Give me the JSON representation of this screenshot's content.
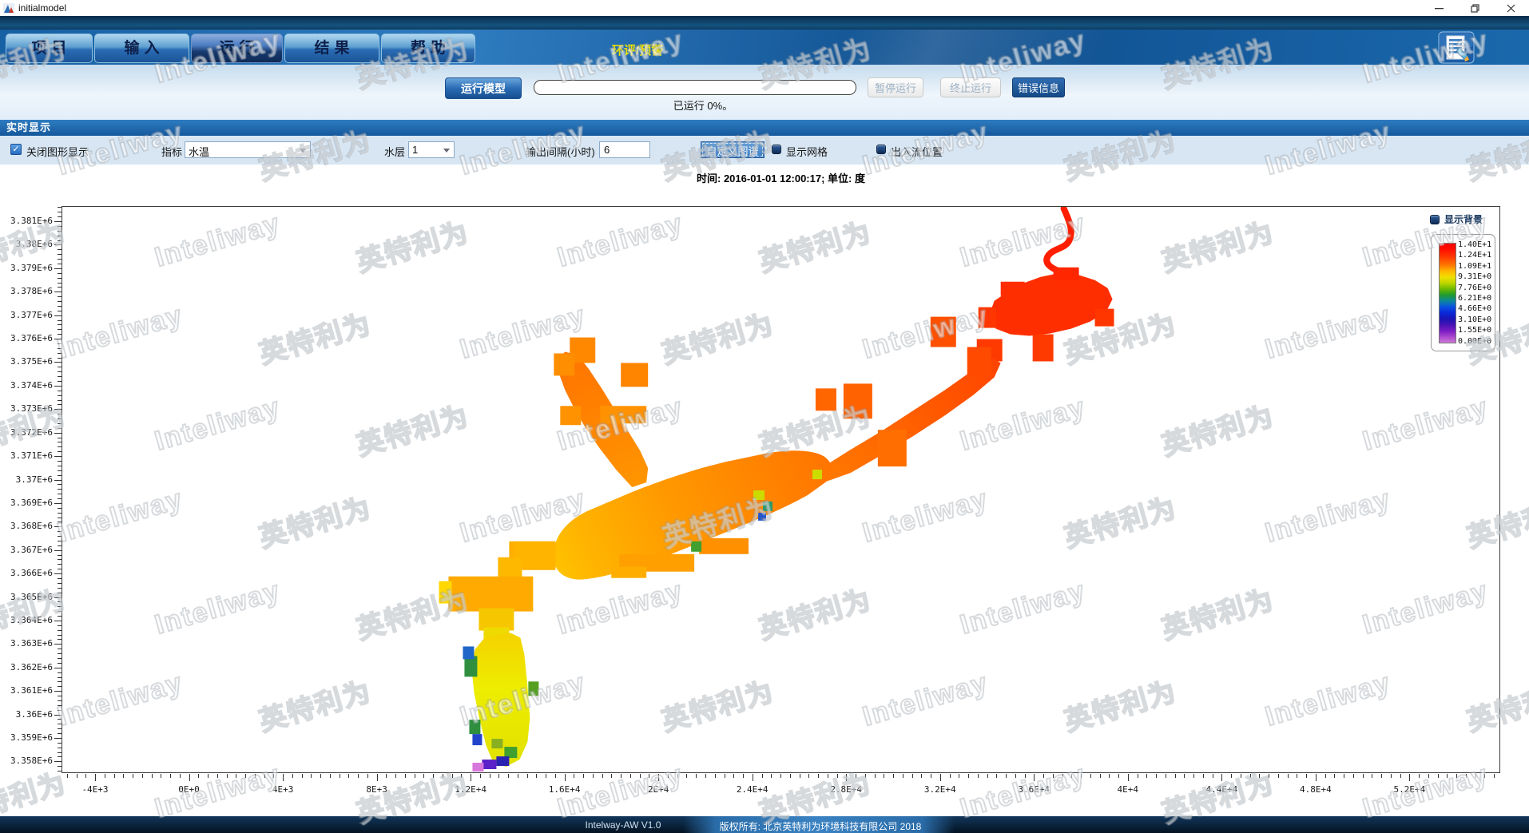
{
  "window": {
    "title": "initialmodel"
  },
  "nav": {
    "tabs": [
      {
        "label": "项目",
        "active": false
      },
      {
        "label": "输入",
        "active": false
      },
      {
        "label": "运行",
        "active": true
      },
      {
        "label": "结果",
        "active": false
      },
      {
        "label": "帮助",
        "active": false
      }
    ],
    "highlight_tab": "环评/预警"
  },
  "toolbar": {
    "run_button": "运行模型",
    "progress_percent": 0,
    "progress_text": "已运行 0%。",
    "pause_button": "暂停运行",
    "stop_button": "终止运行",
    "error_button": "错误信息"
  },
  "realtime": {
    "section_title": "实时显示",
    "close_graphics_label": "关闭图形显示",
    "close_graphics_checked": true,
    "indicator_label": "指标",
    "indicator_value": "水温",
    "layer_label": "水层",
    "layer_value": "1",
    "interval_label": "输出间隔(小时)",
    "interval_value": "6",
    "custom_map_label": "自定义图谱",
    "show_grid_label": "显示网格",
    "show_grid_checked": false,
    "inout_label": "出入流位置",
    "inout_checked": false
  },
  "plot": {
    "time_caption": "时间: 2016-01-01 12:00:17; 单位: 度",
    "legend": {
      "background_label": "显示背景",
      "background_checked": false
    }
  },
  "chart_data": {
    "type": "heatmap",
    "title": "时间: 2016-01-01 12:00:17; 单位: 度",
    "variable": "水温",
    "unit": "度",
    "timestamp": "2016-01-01 12:00:17",
    "x_ticks": [
      "-4E+3",
      "0E+0",
      "4E+3",
      "8E+3",
      "1.2E+4",
      "1.6E+4",
      "2E+4",
      "2.4E+4",
      "2.8E+4",
      "3.2E+4",
      "3.6E+4",
      "4E+4",
      "4.4E+4",
      "4.8E+4",
      "5.2E+4"
    ],
    "y_ticks": [
      "3.381E+6",
      "3.38E+6",
      "3.379E+6",
      "3.378E+6",
      "3.377E+6",
      "3.376E+6",
      "3.375E+6",
      "3.374E+6",
      "3.373E+6",
      "3.372E+6",
      "3.371E+6",
      "3.37E+6",
      "3.369E+6",
      "3.368E+6",
      "3.367E+6",
      "3.366E+6",
      "3.365E+6",
      "3.364E+6",
      "3.363E+6",
      "3.362E+6",
      "3.361E+6",
      "3.36E+6",
      "3.359E+6",
      "3.358E+6"
    ],
    "x_range": [
      -5400,
      55900
    ],
    "y_range": [
      3357500,
      3381650
    ],
    "grid": false,
    "legend_position": "top-right-inside",
    "colorbar": {
      "min": 0,
      "max": 14,
      "tick_labels": [
        "1.40E+1",
        "1.24E+1",
        "1.09E+1",
        "9.31E+0",
        "7.76E+0",
        "6.21E+0",
        "4.66E+0",
        "3.10E+0",
        "1.55E+0",
        "0.00E+0"
      ],
      "palette_top_to_bottom": [
        "#ff0000",
        "#ff7a00",
        "#f0e000",
        "#6ab800",
        "#1f9a30",
        "#0a50e0",
        "#4814b4",
        "#aa46cc",
        "#cc7ad8"
      ]
    },
    "regions": [
      {
        "name": "upstream-river-northeast",
        "approx_value": 13.8,
        "color": "#ff2e00"
      },
      {
        "name": "winding-inlet-channel-top",
        "approx_value": 14.0,
        "color": "#ff1e00"
      },
      {
        "name": "middle-channel-with-branches",
        "approx_value": 12.5,
        "color": "#ff6600"
      },
      {
        "name": "main-reservoir-body",
        "approx_value": 11.0,
        "color": "#ff9900"
      },
      {
        "name": "southwest-connector",
        "approx_value": 10.0,
        "color": "#ffc400"
      },
      {
        "name": "south-branch-strip",
        "approx_value": 9.0,
        "color": "#ecec00"
      },
      {
        "name": "south-branch-edge-cells",
        "approx_value": 5.0,
        "color": "#2f8f3f"
      },
      {
        "name": "south-branch-tip-cells",
        "approx_value": 1.5,
        "color": "#5a22c8"
      }
    ]
  },
  "statusbar": {
    "app_version": "Intelway-AW  V1.0",
    "copyright": "版权所有: 北京英特利为环境科技有限公司 2018"
  },
  "watermark": {
    "latin": "Inteliway",
    "cjk": "英特利为"
  },
  "colors": {
    "navbar_blue": "#1a5fa8",
    "active_tab": "#123a75",
    "highlight_tab_text": "#f2e400",
    "primary_button": "#2a6cb4",
    "error_button": "#1a5492",
    "section_bar": "#1a66aa"
  }
}
